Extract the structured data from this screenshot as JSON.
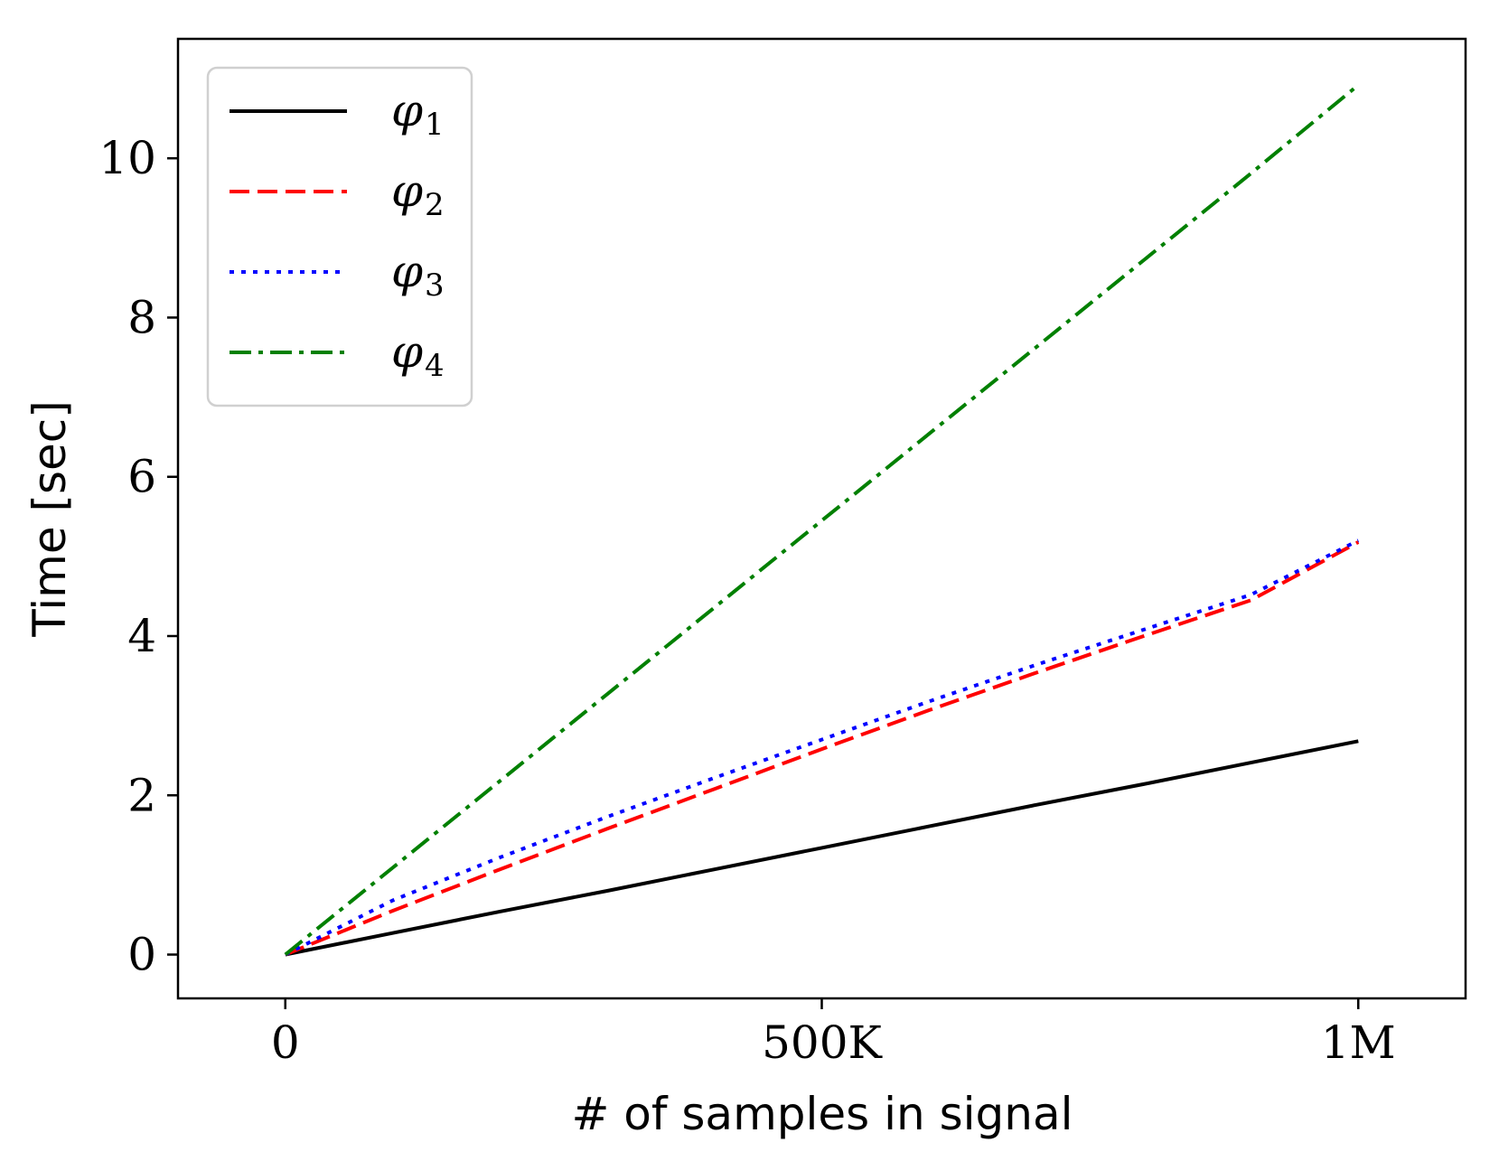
{
  "chart_data": {
    "type": "line",
    "title": "",
    "xlabel": "# of samples in signal",
    "ylabel": "Time [sec]",
    "xlim": [
      -100000,
      1100000
    ],
    "ylim": [
      -0.55,
      11.5
    ],
    "xticks": [
      {
        "value": 0,
        "label": "0"
      },
      {
        "value": 500000,
        "label": "500K"
      },
      {
        "value": 1000000,
        "label": "1M"
      }
    ],
    "yticks": [
      {
        "value": 0,
        "label": "0"
      },
      {
        "value": 2,
        "label": "2"
      },
      {
        "value": 4,
        "label": "4"
      },
      {
        "value": 6,
        "label": "6"
      },
      {
        "value": 8,
        "label": "8"
      },
      {
        "value": 10,
        "label": "10"
      }
    ],
    "grid": false,
    "legend_position": "top-left",
    "x": [
      0,
      100000,
      200000,
      300000,
      400000,
      500000,
      600000,
      700000,
      800000,
      900000,
      1000000
    ],
    "series": [
      {
        "name": "φ",
        "subscript": "1",
        "color": "#000000",
        "style": "solid",
        "values": [
          0,
          0.27,
          0.54,
          0.8,
          1.07,
          1.34,
          1.61,
          1.88,
          2.14,
          2.41,
          2.68
        ]
      },
      {
        "name": "φ",
        "subscript": "2",
        "color": "#ff0000",
        "style": "dashed",
        "values": [
          0,
          0.55,
          1.07,
          1.58,
          2.08,
          2.58,
          3.07,
          3.54,
          4.0,
          4.45,
          5.18
        ]
      },
      {
        "name": "φ",
        "subscript": "3",
        "color": "#0000ff",
        "style": "dotted",
        "values": [
          0,
          0.68,
          1.22,
          1.73,
          2.22,
          2.7,
          3.18,
          3.64,
          4.08,
          4.52,
          5.2
        ]
      },
      {
        "name": "φ",
        "subscript": "4",
        "color": "#008000",
        "style": "dashdot",
        "values": [
          0,
          1.09,
          2.18,
          3.27,
          4.36,
          5.45,
          6.54,
          7.63,
          8.72,
          9.81,
          10.92
        ]
      }
    ]
  }
}
